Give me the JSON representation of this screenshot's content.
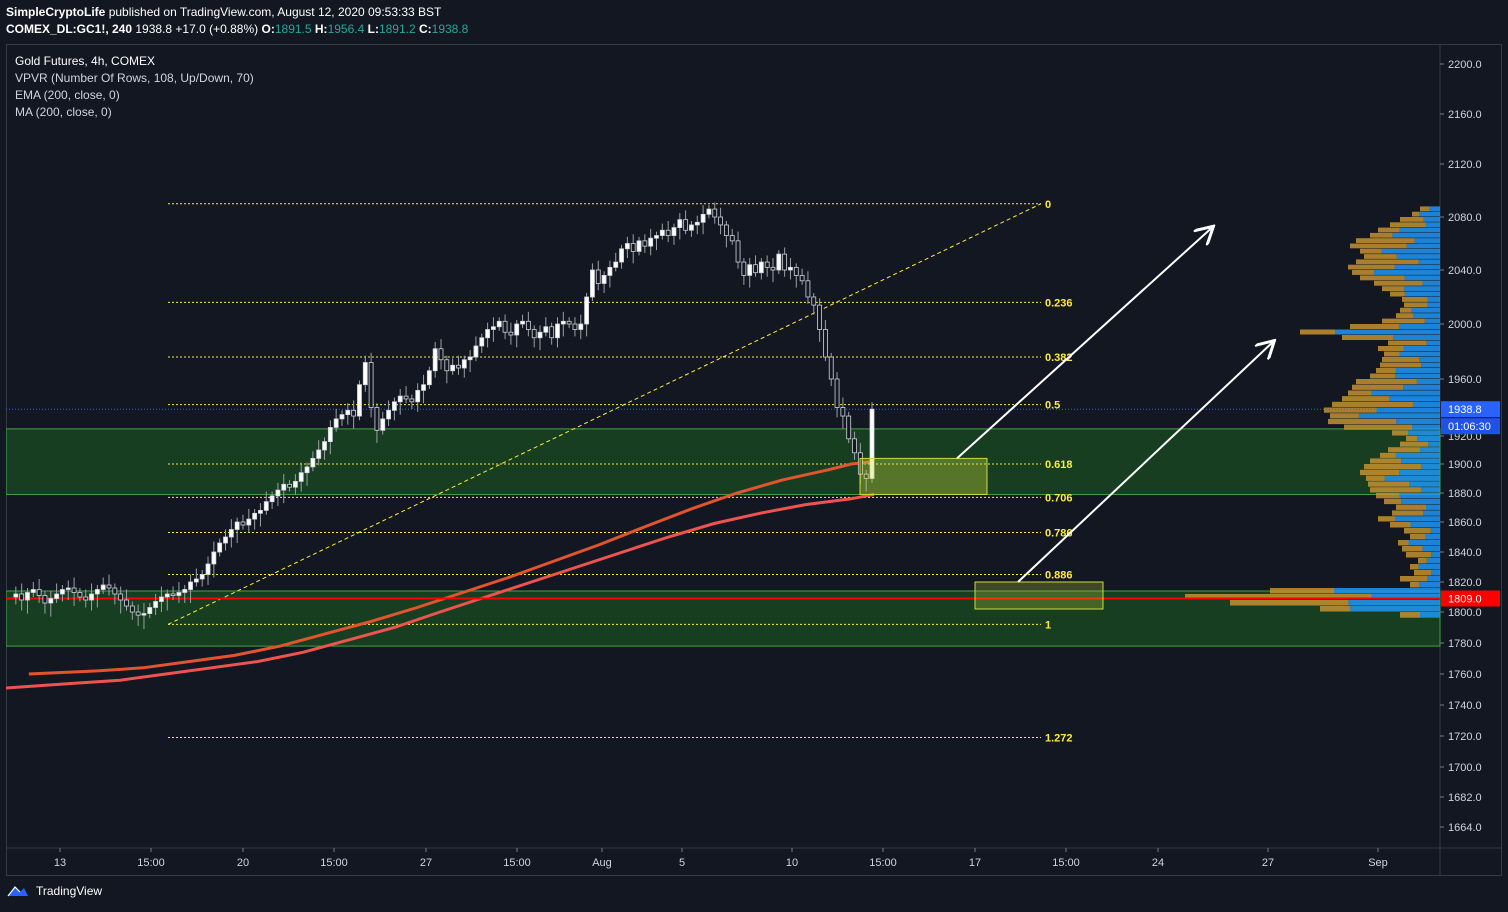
{
  "header": {
    "author": "SimpleCryptoLife",
    "published_text": "published on TradingView.com, August 12, 2020 09:53:33 BST",
    "symbol": "COMEX_DL:GC1!, 240",
    "last": "1938.8",
    "change": "+17.0 (+0.88%)",
    "o_label": "O:",
    "o": "1891.5",
    "h_label": "H:",
    "h": "1956.4",
    "l_label": "L:",
    "l": "1891.2",
    "c_label": "C:",
    "c": "1938.8"
  },
  "legend": {
    "title": "Gold Futures, 4h, COMEX",
    "vpvr": "VPVR (Number Of Rows, 108, Up/Down, 70)",
    "ema": "EMA (200, close, 0)",
    "ma": "MA (200, close, 0)"
  },
  "footer": {
    "brand": "TradingView"
  },
  "colors": {
    "background": "#131722",
    "up": "#ffffff",
    "ema": "#ef5350",
    "ma": "#e2542d",
    "fib": "#ffeb3b",
    "zone": "#1b5e20",
    "vp_up": "#2196f3",
    "vp_down": "#c4922f",
    "support": "#ff0000",
    "last_price": "#2962ff"
  },
  "chart_data": {
    "type": "candlestick",
    "title": "Gold Futures, 4h, COMEX",
    "ylim": [
      1650,
      2220
    ],
    "y_ticks": [
      1664,
      1682,
      1700,
      1720,
      1740,
      1760,
      1780,
      1800,
      1820,
      1840,
      1860,
      1880,
      1900,
      1920,
      1960,
      2000,
      2040,
      2080,
      2120,
      2160,
      2200
    ],
    "x_ticks": [
      "13",
      "15:00",
      "20",
      "15:00",
      "27",
      "15:00",
      "Aug",
      "5",
      "10",
      "15:00",
      "17",
      "15:00",
      "24",
      "27",
      "Sep"
    ],
    "close_path": [
      1810,
      1812,
      1808,
      1813,
      1815,
      1811,
      1806,
      1809,
      1812,
      1815,
      1816,
      1813,
      1810,
      1808,
      1812,
      1815,
      1818,
      1816,
      1812,
      1808,
      1804,
      1800,
      1798,
      1799,
      1803,
      1807,
      1810,
      1812,
      1811,
      1813,
      1815,
      1820,
      1822,
      1825,
      1832,
      1840,
      1846,
      1850,
      1855,
      1860,
      1858,
      1862,
      1866,
      1868,
      1874,
      1878,
      1882,
      1886,
      1884,
      1888,
      1894,
      1898,
      1904,
      1910,
      1916,
      1926,
      1932,
      1935,
      1938,
      1934,
      1956,
      1972,
      1940,
      1924,
      1932,
      1938,
      1944,
      1948,
      1946,
      1944,
      1952,
      1956,
      1966,
      1982,
      1974,
      1966,
      1970,
      1968,
      1974,
      1976,
      1984,
      1990,
      1996,
      1998,
      2002,
      1994,
      1992,
      2000,
      2002,
      1996,
      1990,
      1994,
      1998,
      1990,
      2000,
      2002,
      2000,
      1996,
      2000,
      2020,
      2040,
      2030,
      2036,
      2042,
      2046,
      2056,
      2060,
      2054,
      2062,
      2058,
      2064,
      2066,
      2070,
      2066,
      2072,
      2078,
      2070,
      2074,
      2076,
      2082,
      2086,
      2080,
      2074,
      2066,
      2062,
      2046,
      2036,
      2044,
      2038,
      2046,
      2042,
      2040,
      2052,
      2040,
      2042,
      2036,
      2032,
      2020,
      2014,
      1996,
      1976,
      1960,
      1940,
      1934,
      1918,
      1908,
      1893,
      1890,
      1938.8
    ],
    "ema_200": [
      [
        1675,
        1760
      ],
      [
        1690,
        1762
      ],
      [
        1700,
        1764
      ],
      [
        1710,
        1768
      ],
      [
        1720,
        1772
      ],
      [
        1730,
        1778
      ],
      [
        1740,
        1786
      ],
      [
        1750,
        1794
      ],
      [
        1760,
        1803
      ],
      [
        1770,
        1813
      ],
      [
        1780,
        1823
      ],
      [
        1790,
        1834
      ],
      [
        1800,
        1845
      ],
      [
        1810,
        1857
      ],
      [
        1820,
        1869
      ],
      [
        1830,
        1880
      ],
      [
        1840,
        1889
      ],
      [
        1850,
        1896
      ],
      [
        1855,
        1900
      ],
      [
        1858,
        1901
      ],
      [
        1860,
        1902
      ]
    ],
    "ma_200": [
      [
        1670,
        1751
      ],
      [
        1685,
        1754
      ],
      [
        1695,
        1756
      ],
      [
        1705,
        1760
      ],
      [
        1715,
        1764
      ],
      [
        1725,
        1768
      ],
      [
        1735,
        1774
      ],
      [
        1745,
        1782
      ],
      [
        1755,
        1790
      ],
      [
        1765,
        1800
      ],
      [
        1775,
        1810
      ],
      [
        1785,
        1820
      ],
      [
        1795,
        1830
      ],
      [
        1805,
        1840
      ],
      [
        1815,
        1850
      ],
      [
        1825,
        1859
      ],
      [
        1835,
        1866
      ],
      [
        1845,
        1872
      ],
      [
        1855,
        1876
      ],
      [
        1860,
        1879
      ]
    ],
    "fib_levels": [
      {
        "label": "0",
        "price": 2090
      },
      {
        "label": "0.236",
        "price": 2016
      },
      {
        "label": "0.382",
        "price": 1976
      },
      {
        "label": "0.5",
        "price": 1942
      },
      {
        "label": "0.618",
        "price": 1900
      },
      {
        "label": "0.706",
        "price": 1877
      },
      {
        "label": "0.786",
        "price": 1853
      },
      {
        "label": "0.886",
        "price": 1825
      },
      {
        "label": "1",
        "price": 1792
      },
      {
        "label": "1.272",
        "price": 1719
      }
    ],
    "support_zones": [
      [
        1879,
        1925
      ],
      [
        1778,
        1814
      ]
    ],
    "support_line": 1809,
    "last_price_line": 1938.8,
    "price_labels": {
      "last": "1938.8",
      "countdown": "01:06:30",
      "support": "1809.0"
    }
  }
}
